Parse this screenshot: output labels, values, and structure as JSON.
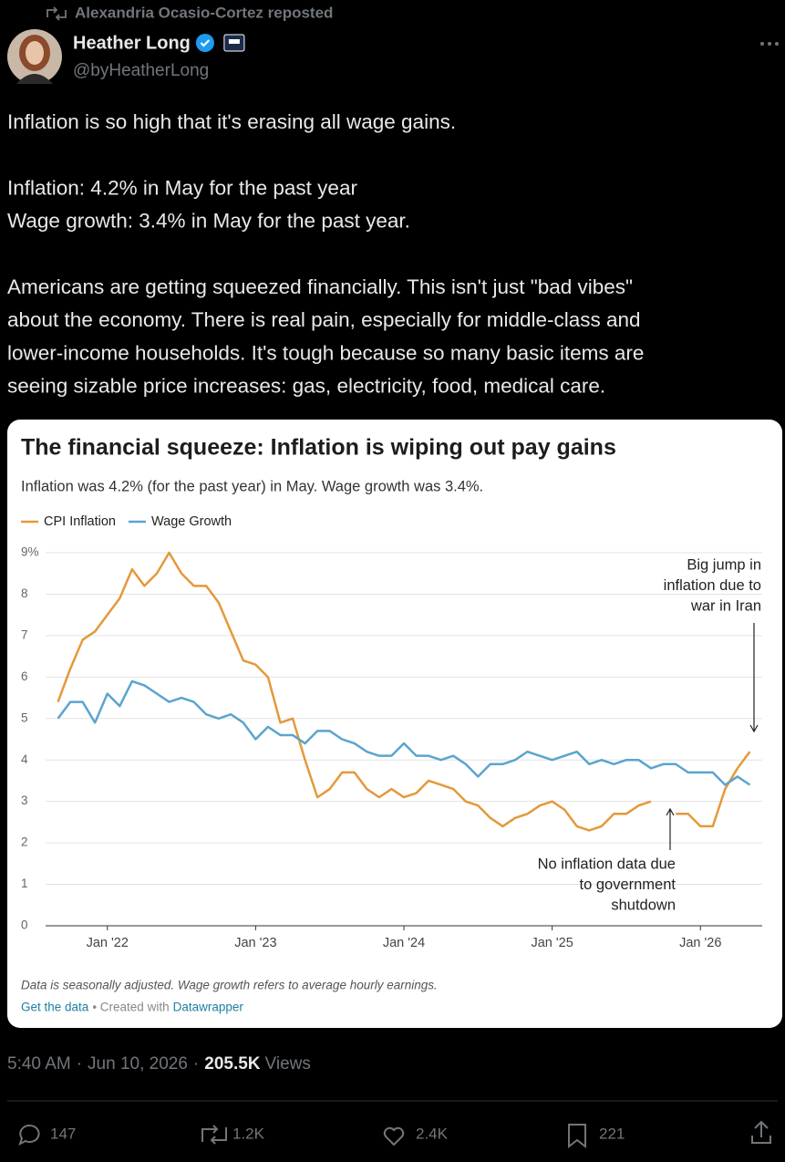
{
  "repost": {
    "text": "Alexandria Ocasio-Cortez reposted"
  },
  "author": {
    "name": "Heather Long",
    "handle": "@byHeatherLong"
  },
  "post": {
    "paragraphs": [
      [
        "Inflation is so high that it's erasing all wage gains."
      ],
      [
        "Inflation: 4.2% in May for the past year",
        "Wage growth: 3.4% in May for the past year."
      ],
      [
        "Americans are getting squeezed financially. This isn't just \"bad vibes\"",
        "about the economy. There is real pain, especially for middle-class and",
        "lower-income households. It's tough because so many basic items are",
        "seeing sizable price increases: gas, electricity, food, medical care."
      ]
    ]
  },
  "chart_data": {
    "type": "line",
    "title": "The financial squeeze: Inflation is wiping out pay gains",
    "subtitle": "Inflation was 4.2% (for the past year) in May. Wage growth was 3.4%.",
    "x": [
      "2021-09",
      "2021-10",
      "2021-11",
      "2021-12",
      "2022-01",
      "2022-02",
      "2022-03",
      "2022-04",
      "2022-05",
      "2022-06",
      "2022-07",
      "2022-08",
      "2022-09",
      "2022-10",
      "2022-11",
      "2022-12",
      "2023-01",
      "2023-02",
      "2023-03",
      "2023-04",
      "2023-05",
      "2023-06",
      "2023-07",
      "2023-08",
      "2023-09",
      "2023-10",
      "2023-11",
      "2023-12",
      "2024-01",
      "2024-02",
      "2024-03",
      "2024-04",
      "2024-05",
      "2024-06",
      "2024-07",
      "2024-08",
      "2024-09",
      "2024-10",
      "2024-11",
      "2024-12",
      "2025-01",
      "2025-02",
      "2025-03",
      "2025-04",
      "2025-05",
      "2025-06",
      "2025-07",
      "2025-08",
      "2025-09",
      "2025-10",
      "2025-11",
      "2025-12",
      "2026-01",
      "2026-02",
      "2026-03",
      "2026-04",
      "2026-05"
    ],
    "series": [
      {
        "name": "CPI Inflation",
        "color": "#e4993a",
        "values": [
          5.4,
          6.2,
          6.9,
          7.1,
          7.5,
          7.9,
          8.6,
          8.2,
          8.5,
          9.0,
          8.5,
          8.2,
          8.2,
          7.8,
          7.1,
          6.4,
          6.3,
          6.0,
          4.9,
          5.0,
          4.0,
          3.1,
          3.3,
          3.7,
          3.7,
          3.3,
          3.1,
          3.3,
          3.1,
          3.2,
          3.5,
          3.4,
          3.3,
          3.0,
          2.9,
          2.6,
          2.4,
          2.6,
          2.7,
          2.9,
          3.0,
          2.8,
          2.4,
          2.3,
          2.4,
          2.7,
          2.7,
          2.9,
          3.0,
          null,
          2.7,
          2.7,
          2.4,
          2.4,
          3.3,
          3.8,
          4.2
        ]
      },
      {
        "name": "Wage Growth",
        "color": "#5ba4cf",
        "values": [
          5.0,
          5.4,
          5.4,
          4.9,
          5.6,
          5.3,
          5.9,
          5.8,
          5.6,
          5.4,
          5.5,
          5.4,
          5.1,
          5.0,
          5.1,
          4.9,
          4.5,
          4.8,
          4.6,
          4.6,
          4.4,
          4.7,
          4.7,
          4.5,
          4.4,
          4.2,
          4.1,
          4.1,
          4.4,
          4.1,
          4.1,
          4.0,
          4.1,
          3.9,
          3.6,
          3.9,
          3.9,
          4.0,
          4.2,
          4.1,
          4.0,
          4.1,
          4.2,
          3.9,
          4.0,
          3.9,
          4.0,
          4.0,
          3.8,
          3.9,
          3.9,
          3.7,
          3.7,
          3.7,
          3.4,
          3.6,
          3.4
        ]
      }
    ],
    "xlim": [
      "2021-08",
      "2026-06"
    ],
    "xticks": [
      {
        "value": "2022-01",
        "label": "Jan '22"
      },
      {
        "value": "2023-01",
        "label": "Jan '23"
      },
      {
        "value": "2024-01",
        "label": "Jan '24"
      },
      {
        "value": "2025-01",
        "label": "Jan '25"
      },
      {
        "value": "2026-01",
        "label": "Jan '26"
      }
    ],
    "ylim": [
      0,
      9
    ],
    "yticks": [
      0,
      1,
      2,
      3,
      4,
      5,
      6,
      7,
      8,
      {
        "value": 9,
        "label": "9%"
      }
    ],
    "grid": true,
    "legend": "top-left",
    "annotations": [
      {
        "lines": [
          "Big jump in",
          "inflation due to",
          "war in Iran"
        ]
      },
      {
        "lines": [
          "No inflation data due",
          "to government",
          "shutdown"
        ]
      }
    ],
    "notes": "Data is seasonally adjusted. Wage growth refers to average hourly earnings.",
    "source_link": "Get the data",
    "created_with": "• Created with",
    "tool": "Datawrapper"
  },
  "meta": {
    "time": "5:40 AM",
    "date": "Jun 10, 2026",
    "separator": "·",
    "views": "205.5K",
    "views_label": "Views"
  },
  "actions": {
    "replies": "147",
    "reposts": "1.2K",
    "likes": "2.4K",
    "bookmarks": "221"
  }
}
